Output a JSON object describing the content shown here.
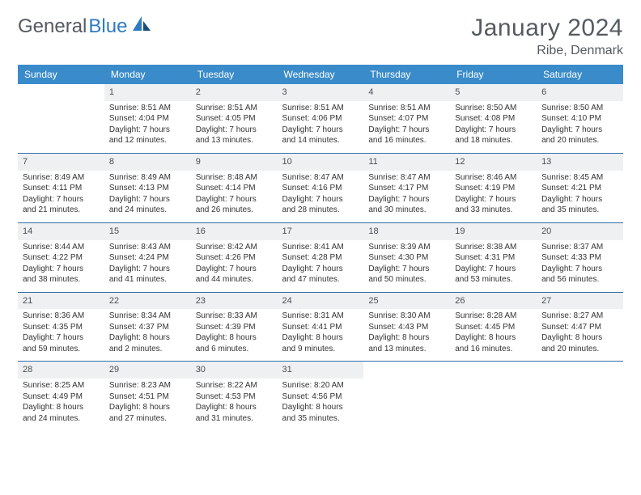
{
  "brand": {
    "word1": "General",
    "word2": "Blue"
  },
  "title": {
    "month": "January 2024",
    "location": "Ribe, Denmark"
  },
  "colors": {
    "header_bg": "#3a8bc9",
    "header_text": "#ffffff",
    "daynum_bg": "#eef0f2",
    "rule": "#2f6fa8",
    "body_text": "#333333",
    "title_text": "#555b60",
    "brand_blue": "#2f7bbf"
  },
  "weekdays": [
    "Sunday",
    "Monday",
    "Tuesday",
    "Wednesday",
    "Thursday",
    "Friday",
    "Saturday"
  ],
  "weeks": [
    [
      null,
      {
        "n": "1",
        "sr": "8:51 AM",
        "ss": "4:04 PM",
        "dl": "7 hours and 12 minutes."
      },
      {
        "n": "2",
        "sr": "8:51 AM",
        "ss": "4:05 PM",
        "dl": "7 hours and 13 minutes."
      },
      {
        "n": "3",
        "sr": "8:51 AM",
        "ss": "4:06 PM",
        "dl": "7 hours and 14 minutes."
      },
      {
        "n": "4",
        "sr": "8:51 AM",
        "ss": "4:07 PM",
        "dl": "7 hours and 16 minutes."
      },
      {
        "n": "5",
        "sr": "8:50 AM",
        "ss": "4:08 PM",
        "dl": "7 hours and 18 minutes."
      },
      {
        "n": "6",
        "sr": "8:50 AM",
        "ss": "4:10 PM",
        "dl": "7 hours and 20 minutes."
      }
    ],
    [
      {
        "n": "7",
        "sr": "8:49 AM",
        "ss": "4:11 PM",
        "dl": "7 hours and 21 minutes."
      },
      {
        "n": "8",
        "sr": "8:49 AM",
        "ss": "4:13 PM",
        "dl": "7 hours and 24 minutes."
      },
      {
        "n": "9",
        "sr": "8:48 AM",
        "ss": "4:14 PM",
        "dl": "7 hours and 26 minutes."
      },
      {
        "n": "10",
        "sr": "8:47 AM",
        "ss": "4:16 PM",
        "dl": "7 hours and 28 minutes."
      },
      {
        "n": "11",
        "sr": "8:47 AM",
        "ss": "4:17 PM",
        "dl": "7 hours and 30 minutes."
      },
      {
        "n": "12",
        "sr": "8:46 AM",
        "ss": "4:19 PM",
        "dl": "7 hours and 33 minutes."
      },
      {
        "n": "13",
        "sr": "8:45 AM",
        "ss": "4:21 PM",
        "dl": "7 hours and 35 minutes."
      }
    ],
    [
      {
        "n": "14",
        "sr": "8:44 AM",
        "ss": "4:22 PM",
        "dl": "7 hours and 38 minutes."
      },
      {
        "n": "15",
        "sr": "8:43 AM",
        "ss": "4:24 PM",
        "dl": "7 hours and 41 minutes."
      },
      {
        "n": "16",
        "sr": "8:42 AM",
        "ss": "4:26 PM",
        "dl": "7 hours and 44 minutes."
      },
      {
        "n": "17",
        "sr": "8:41 AM",
        "ss": "4:28 PM",
        "dl": "7 hours and 47 minutes."
      },
      {
        "n": "18",
        "sr": "8:39 AM",
        "ss": "4:30 PM",
        "dl": "7 hours and 50 minutes."
      },
      {
        "n": "19",
        "sr": "8:38 AM",
        "ss": "4:31 PM",
        "dl": "7 hours and 53 minutes."
      },
      {
        "n": "20",
        "sr": "8:37 AM",
        "ss": "4:33 PM",
        "dl": "7 hours and 56 minutes."
      }
    ],
    [
      {
        "n": "21",
        "sr": "8:36 AM",
        "ss": "4:35 PM",
        "dl": "7 hours and 59 minutes."
      },
      {
        "n": "22",
        "sr": "8:34 AM",
        "ss": "4:37 PM",
        "dl": "8 hours and 2 minutes."
      },
      {
        "n": "23",
        "sr": "8:33 AM",
        "ss": "4:39 PM",
        "dl": "8 hours and 6 minutes."
      },
      {
        "n": "24",
        "sr": "8:31 AM",
        "ss": "4:41 PM",
        "dl": "8 hours and 9 minutes."
      },
      {
        "n": "25",
        "sr": "8:30 AM",
        "ss": "4:43 PM",
        "dl": "8 hours and 13 minutes."
      },
      {
        "n": "26",
        "sr": "8:28 AM",
        "ss": "4:45 PM",
        "dl": "8 hours and 16 minutes."
      },
      {
        "n": "27",
        "sr": "8:27 AM",
        "ss": "4:47 PM",
        "dl": "8 hours and 20 minutes."
      }
    ],
    [
      {
        "n": "28",
        "sr": "8:25 AM",
        "ss": "4:49 PM",
        "dl": "8 hours and 24 minutes."
      },
      {
        "n": "29",
        "sr": "8:23 AM",
        "ss": "4:51 PM",
        "dl": "8 hours and 27 minutes."
      },
      {
        "n": "30",
        "sr": "8:22 AM",
        "ss": "4:53 PM",
        "dl": "8 hours and 31 minutes."
      },
      {
        "n": "31",
        "sr": "8:20 AM",
        "ss": "4:56 PM",
        "dl": "8 hours and 35 minutes."
      },
      null,
      null,
      null
    ]
  ],
  "labels": {
    "sunrise": "Sunrise: ",
    "sunset": "Sunset: ",
    "daylight": "Daylight: "
  }
}
